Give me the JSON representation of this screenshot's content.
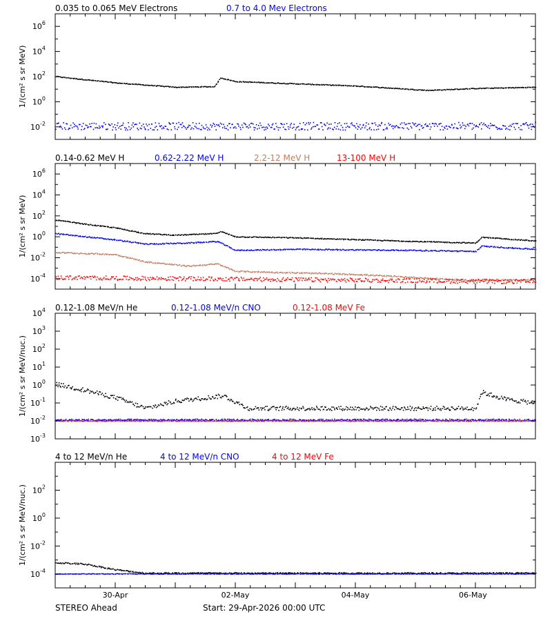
{
  "colors": {
    "axis": "#000000",
    "black": "#000000",
    "blue": "#0000ff",
    "tan": "#c08060",
    "red": "#ff0000"
  },
  "chart_data": [
    {
      "type": "scatter",
      "log_y": true,
      "xlim": [
        0,
        8
      ],
      "ylim": [
        -3,
        7
      ],
      "ylabel": "1/(cm² s sr MeV)",
      "yticks": [
        {
          "exp": -2,
          "label": "10-2"
        },
        {
          "exp": 0,
          "label": "100"
        },
        {
          "exp": 2,
          "label": "102"
        },
        {
          "exp": 4,
          "label": "104"
        },
        {
          "exp": 6,
          "label": "106"
        }
      ],
      "series": [
        {
          "name": "0.035 to 0.065 MeV Electrons",
          "color": "black",
          "trend": [
            [
              0,
              2.0
            ],
            [
              1,
              1.5
            ],
            [
              2,
              1.15
            ],
            [
              2.65,
              1.2
            ],
            [
              2.75,
              1.9
            ],
            [
              3,
              1.6
            ],
            [
              5,
              1.25
            ],
            [
              6.2,
              0.9
            ],
            [
              7,
              1.05
            ],
            [
              8,
              1.15
            ]
          ],
          "noise": 0.03
        },
        {
          "name": "0.7 to 4.0 Mev Electrons",
          "color": "blue",
          "trend": [
            [
              0,
              -1.95
            ],
            [
              8,
              -1.95
            ]
          ],
          "noise": 0.3
        }
      ]
    },
    {
      "type": "scatter",
      "log_y": true,
      "xlim": [
        0,
        8
      ],
      "ylim": [
        -5,
        7
      ],
      "ylabel": "1/(cm² s sr MeV)",
      "yticks": [
        {
          "exp": -4,
          "label": "10-4"
        },
        {
          "exp": -2,
          "label": "10-2"
        },
        {
          "exp": 0,
          "label": "100"
        },
        {
          "exp": 2,
          "label": "102"
        },
        {
          "exp": 4,
          "label": "104"
        },
        {
          "exp": 6,
          "label": "106"
        }
      ],
      "series": [
        {
          "name": "0.14-0.62 MeV H",
          "color": "black",
          "trend": [
            [
              0,
              1.6
            ],
            [
              0.5,
              1.2
            ],
            [
              1,
              0.85
            ],
            [
              1.5,
              0.3
            ],
            [
              2,
              0.15
            ],
            [
              2.65,
              0.3
            ],
            [
              2.75,
              0.5
            ],
            [
              3,
              0.0
            ],
            [
              4,
              -0.1
            ],
            [
              6,
              -0.45
            ],
            [
              7,
              -0.6
            ],
            [
              7.1,
              -0.05
            ],
            [
              8,
              -0.4
            ]
          ],
          "noise": 0.04
        },
        {
          "name": "0.62-2.22 MeV H",
          "color": "blue",
          "trend": [
            [
              0,
              0.3
            ],
            [
              1,
              -0.3
            ],
            [
              1.5,
              -0.7
            ],
            [
              2.2,
              -0.6
            ],
            [
              2.7,
              -0.45
            ],
            [
              3,
              -1.3
            ],
            [
              4,
              -1.2
            ],
            [
              6,
              -1.3
            ],
            [
              7,
              -1.4
            ],
            [
              7.1,
              -0.9
            ],
            [
              8,
              -1.2
            ]
          ],
          "noise": 0.05
        },
        {
          "name": "2.2-12 MeV H",
          "color": "tan",
          "trend": [
            [
              0,
              -1.5
            ],
            [
              1,
              -1.7
            ],
            [
              1.5,
              -2.4
            ],
            [
              2.2,
              -2.8
            ],
            [
              2.7,
              -2.6
            ],
            [
              3,
              -3.3
            ],
            [
              5,
              -3.6
            ],
            [
              7,
              -4.2
            ],
            [
              8,
              -4.1
            ]
          ],
          "noise": 0.06
        },
        {
          "name": "13-100 MeV H",
          "color": "red",
          "trend": [
            [
              0,
              -3.9
            ],
            [
              8,
              -4.3
            ]
          ],
          "noise": 0.2
        }
      ]
    },
    {
      "type": "scatter",
      "log_y": true,
      "xlim": [
        0,
        8
      ],
      "ylim": [
        -3,
        4
      ],
      "ylabel": "1/(cm² s sr MeV/nuc.)",
      "yticks": [
        {
          "exp": -3,
          "label": "10-3"
        },
        {
          "exp": -2,
          "label": "10-2"
        },
        {
          "exp": -1,
          "label": "10-1"
        },
        {
          "exp": 0,
          "label": "100"
        },
        {
          "exp": 1,
          "label": "101"
        },
        {
          "exp": 2,
          "label": "102"
        },
        {
          "exp": 3,
          "label": "103"
        },
        {
          "exp": 4,
          "label": "104"
        }
      ],
      "series": [
        {
          "name": "0.12-1.08 MeV/n He",
          "color": "black",
          "trend": [
            [
              0,
              0.05
            ],
            [
              0.5,
              -0.3
            ],
            [
              1,
              -0.7
            ],
            [
              1.5,
              -1.3
            ],
            [
              2,
              -0.9
            ],
            [
              2.8,
              -0.6
            ],
            [
              3.2,
              -1.3
            ],
            [
              7,
              -1.3
            ],
            [
              7.1,
              -0.4
            ],
            [
              7.5,
              -0.8
            ],
            [
              8,
              -1.0
            ]
          ],
          "noise": 0.12
        },
        {
          "name": "0.12-1.08 MeV/n CNO",
          "color": "blue",
          "trend": [
            [
              0,
              -1.95
            ],
            [
              8,
              -1.95
            ]
          ],
          "noise": 0.05
        },
        {
          "name": "0.12-1.08 MeV Fe",
          "color": "red",
          "trend": [
            [
              0,
              -2.0
            ],
            [
              8,
              -2.0
            ]
          ],
          "noise": 0.02
        }
      ]
    },
    {
      "type": "scatter",
      "log_y": true,
      "xlim": [
        0,
        8
      ],
      "ylim": [
        -5,
        4
      ],
      "ylabel": "1/(cm² s sr MeV/nuc.)",
      "yticks": [
        {
          "exp": -4,
          "label": "10-4"
        },
        {
          "exp": -2,
          "label": "10-2"
        },
        {
          "exp": 0,
          "label": "100"
        },
        {
          "exp": 2,
          "label": "102"
        }
      ],
      "series": [
        {
          "name": "4 to 12 MeV/n He",
          "color": "black",
          "trend": [
            [
              0,
              -3.2
            ],
            [
              0.5,
              -3.3
            ],
            [
              1,
              -3.7
            ],
            [
              1.5,
              -3.95
            ],
            [
              8,
              -3.95
            ]
          ],
          "noise": 0.05
        },
        {
          "name": "4 to 12 MeV/n CNO",
          "color": "blue",
          "trend": [
            [
              0,
              -4.0
            ],
            [
              8,
              -4.0
            ]
          ],
          "noise": 0.02
        },
        {
          "name": "4 to 12 MeV Fe",
          "color": "red",
          "trend": [],
          "noise": 0
        }
      ]
    }
  ],
  "x_ticks": [
    {
      "day": 1,
      "label": "30-Apr"
    },
    {
      "day": 3,
      "label": "02-May"
    },
    {
      "day": 5,
      "label": "04-May"
    },
    {
      "day": 7,
      "label": "06-May"
    }
  ],
  "footer": {
    "spacecraft": "STEREO Ahead",
    "start": "Start: 29-Apr-2026 00:00 UTC"
  }
}
